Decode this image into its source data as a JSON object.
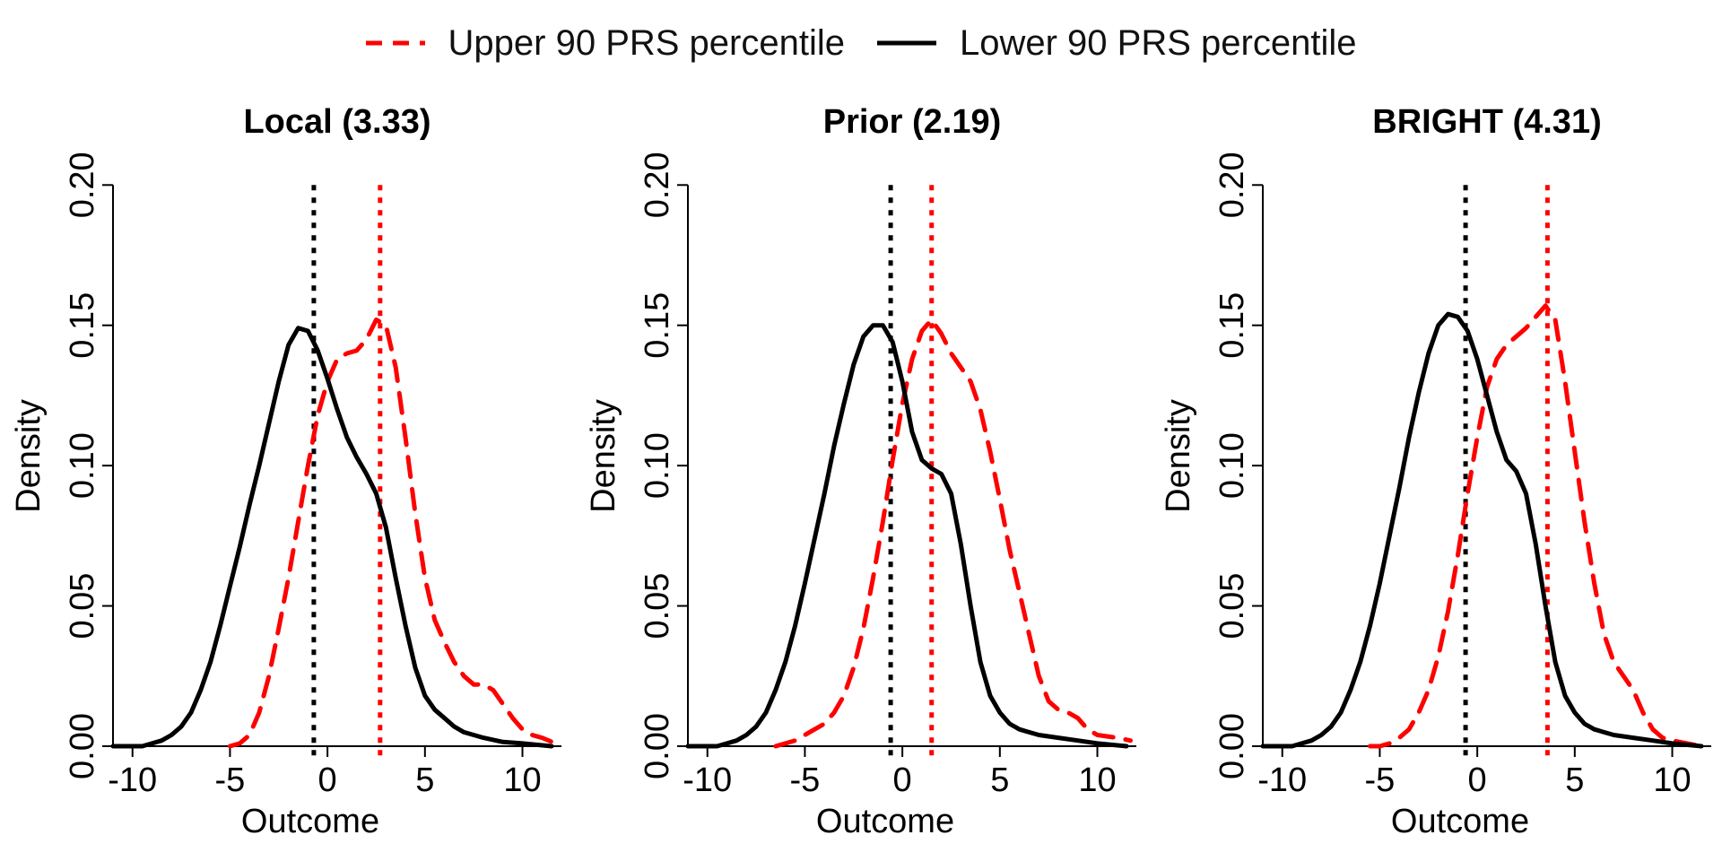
{
  "legend": {
    "position": "top-center",
    "entries": [
      {
        "label": "Upper 90 PRS percentile",
        "color": "#ff0000",
        "dash": "dashed"
      },
      {
        "label": "Lower 90 PRS percentile",
        "color": "#000000",
        "dash": "solid"
      }
    ]
  },
  "chart_data": [
    {
      "type": "line",
      "title": "Local (3.33)",
      "xlabel": "Outcome",
      "ylabel": "Density",
      "xlim": [
        -11,
        12
      ],
      "ylim": [
        0,
        0.21
      ],
      "xticks": [
        -10,
        -5,
        0,
        5,
        10
      ],
      "yticks": [
        0.0,
        0.05,
        0.1,
        0.15,
        0.2
      ],
      "grid": false,
      "vlines": [
        {
          "x": -0.7,
          "color": "#000000"
        },
        {
          "x": 2.7,
          "color": "#ff0000"
        }
      ],
      "series": [
        {
          "name": "Upper 90 PRS percentile",
          "color": "#ff0000",
          "dash": "dashed",
          "points": [
            [
              -5,
              0.0
            ],
            [
              -4.5,
              0.001
            ],
            [
              -4,
              0.004
            ],
            [
              -3.5,
              0.012
            ],
            [
              -3,
              0.025
            ],
            [
              -2.5,
              0.042
            ],
            [
              -2,
              0.06
            ],
            [
              -1.5,
              0.08
            ],
            [
              -1,
              0.1
            ],
            [
              -0.5,
              0.118
            ],
            [
              0,
              0.13
            ],
            [
              0.5,
              0.138
            ],
            [
              1,
              0.14
            ],
            [
              1.5,
              0.141
            ],
            [
              2,
              0.145
            ],
            [
              2.5,
              0.152
            ],
            [
              3,
              0.15
            ],
            [
              3.5,
              0.135
            ],
            [
              4,
              0.11
            ],
            [
              4.5,
              0.083
            ],
            [
              5,
              0.06
            ],
            [
              5.5,
              0.045
            ],
            [
              6,
              0.037
            ],
            [
              6.5,
              0.03
            ],
            [
              7,
              0.025
            ],
            [
              7.5,
              0.022
            ],
            [
              8,
              0.022
            ],
            [
              8.5,
              0.02
            ],
            [
              9,
              0.015
            ],
            [
              9.5,
              0.01
            ],
            [
              10,
              0.006
            ],
            [
              10.5,
              0.004
            ],
            [
              11,
              0.003
            ],
            [
              11.7,
              0.001
            ]
          ]
        },
        {
          "name": "Lower 90 PRS percentile",
          "color": "#000000",
          "dash": "solid",
          "points": [
            [
              -11,
              0.0
            ],
            [
              -10,
              0.0
            ],
            [
              -9.5,
              0.0
            ],
            [
              -9,
              0.001
            ],
            [
              -8.5,
              0.002
            ],
            [
              -8,
              0.004
            ],
            [
              -7.5,
              0.007
            ],
            [
              -7,
              0.012
            ],
            [
              -6.5,
              0.02
            ],
            [
              -6,
              0.03
            ],
            [
              -5.5,
              0.043
            ],
            [
              -5,
              0.057
            ],
            [
              -4.5,
              0.071
            ],
            [
              -4,
              0.086
            ],
            [
              -3.5,
              0.1
            ],
            [
              -3,
              0.115
            ],
            [
              -2.5,
              0.13
            ],
            [
              -2,
              0.143
            ],
            [
              -1.5,
              0.149
            ],
            [
              -1,
              0.148
            ],
            [
              -0.5,
              0.141
            ],
            [
              0,
              0.131
            ],
            [
              0.5,
              0.12
            ],
            [
              1,
              0.11
            ],
            [
              1.5,
              0.103
            ],
            [
              2,
              0.097
            ],
            [
              2.5,
              0.09
            ],
            [
              3,
              0.078
            ],
            [
              3.5,
              0.06
            ],
            [
              4,
              0.043
            ],
            [
              4.5,
              0.028
            ],
            [
              5,
              0.018
            ],
            [
              5.5,
              0.013
            ],
            [
              6,
              0.01
            ],
            [
              6.5,
              0.007
            ],
            [
              7,
              0.005
            ],
            [
              7.5,
              0.004
            ],
            [
              8,
              0.003
            ],
            [
              9,
              0.0015
            ],
            [
              10,
              0.001
            ],
            [
              11.5,
              0.0
            ]
          ]
        }
      ]
    },
    {
      "type": "line",
      "title": "Prior (2.19)",
      "xlabel": "Outcome",
      "ylabel": "Density",
      "xlim": [
        -11,
        12
      ],
      "ylim": [
        0,
        0.21
      ],
      "xticks": [
        -10,
        -5,
        0,
        5,
        10
      ],
      "yticks": [
        0.0,
        0.05,
        0.1,
        0.15,
        0.2
      ],
      "grid": false,
      "vlines": [
        {
          "x": -0.6,
          "color": "#000000"
        },
        {
          "x": 1.5,
          "color": "#ff0000"
        }
      ],
      "series": [
        {
          "name": "Upper 90 PRS percentile",
          "color": "#ff0000",
          "dash": "dashed",
          "points": [
            [
              -6.5,
              0.0
            ],
            [
              -6,
              0.001
            ],
            [
              -5.5,
              0.002
            ],
            [
              -5,
              0.004
            ],
            [
              -4.5,
              0.006
            ],
            [
              -4,
              0.008
            ],
            [
              -3.5,
              0.012
            ],
            [
              -3,
              0.018
            ],
            [
              -2.5,
              0.028
            ],
            [
              -2,
              0.042
            ],
            [
              -1.5,
              0.06
            ],
            [
              -1,
              0.08
            ],
            [
              -0.5,
              0.102
            ],
            [
              0,
              0.122
            ],
            [
              0.5,
              0.138
            ],
            [
              1,
              0.148
            ],
            [
              1.5,
              0.152
            ],
            [
              2,
              0.147
            ],
            [
              2.5,
              0.14
            ],
            [
              3,
              0.135
            ],
            [
              3.5,
              0.13
            ],
            [
              4,
              0.12
            ],
            [
              4.5,
              0.105
            ],
            [
              5,
              0.088
            ],
            [
              5.5,
              0.07
            ],
            [
              6,
              0.055
            ],
            [
              6.5,
              0.04
            ],
            [
              7,
              0.025
            ],
            [
              7.5,
              0.016
            ],
            [
              8,
              0.013
            ],
            [
              8.5,
              0.012
            ],
            [
              9,
              0.01
            ],
            [
              9.5,
              0.006
            ],
            [
              10,
              0.004
            ],
            [
              11,
              0.003
            ],
            [
              11.7,
              0.002
            ]
          ]
        },
        {
          "name": "Lower 90 PRS percentile",
          "color": "#000000",
          "dash": "solid",
          "points": [
            [
              -11,
              0.0
            ],
            [
              -10,
              0.0
            ],
            [
              -9.5,
              0.0
            ],
            [
              -9,
              0.001
            ],
            [
              -8.5,
              0.002
            ],
            [
              -8,
              0.004
            ],
            [
              -7.5,
              0.007
            ],
            [
              -7,
              0.012
            ],
            [
              -6.5,
              0.02
            ],
            [
              -6,
              0.03
            ],
            [
              -5.5,
              0.043
            ],
            [
              -5,
              0.058
            ],
            [
              -4.5,
              0.074
            ],
            [
              -4,
              0.09
            ],
            [
              -3.5,
              0.107
            ],
            [
              -3,
              0.122
            ],
            [
              -2.5,
              0.136
            ],
            [
              -2,
              0.146
            ],
            [
              -1.5,
              0.15
            ],
            [
              -1,
              0.15
            ],
            [
              -0.5,
              0.144
            ],
            [
              0,
              0.13
            ],
            [
              0.5,
              0.112
            ],
            [
              1,
              0.102
            ],
            [
              1.5,
              0.099
            ],
            [
              2,
              0.097
            ],
            [
              2.5,
              0.09
            ],
            [
              3,
              0.072
            ],
            [
              3.5,
              0.05
            ],
            [
              4,
              0.03
            ],
            [
              4.5,
              0.018
            ],
            [
              5,
              0.012
            ],
            [
              5.5,
              0.008
            ],
            [
              6,
              0.006
            ],
            [
              6.5,
              0.005
            ],
            [
              7,
              0.004
            ],
            [
              8,
              0.003
            ],
            [
              9,
              0.002
            ],
            [
              10,
              0.001
            ],
            [
              11.5,
              0.0
            ]
          ]
        }
      ]
    },
    {
      "type": "line",
      "title": "BRIGHT (4.31)",
      "xlabel": "Outcome",
      "ylabel": "Density",
      "xlim": [
        -11,
        12
      ],
      "ylim": [
        0,
        0.21
      ],
      "xticks": [
        -10,
        -5,
        0,
        5,
        10
      ],
      "yticks": [
        0.0,
        0.05,
        0.1,
        0.15,
        0.2
      ],
      "grid": false,
      "vlines": [
        {
          "x": -0.6,
          "color": "#000000"
        },
        {
          "x": 3.6,
          "color": "#ff0000"
        }
      ],
      "series": [
        {
          "name": "Upper 90 PRS percentile",
          "color": "#ff0000",
          "dash": "dashed",
          "points": [
            [
              -5.5,
              0.0
            ],
            [
              -5,
              0.0
            ],
            [
              -4.5,
              0.001
            ],
            [
              -4,
              0.003
            ],
            [
              -3.5,
              0.006
            ],
            [
              -3,
              0.012
            ],
            [
              -2.5,
              0.02
            ],
            [
              -2,
              0.032
            ],
            [
              -1.5,
              0.048
            ],
            [
              -1,
              0.068
            ],
            [
              -0.5,
              0.09
            ],
            [
              0,
              0.11
            ],
            [
              0.5,
              0.128
            ],
            [
              1,
              0.138
            ],
            [
              1.5,
              0.143
            ],
            [
              2,
              0.146
            ],
            [
              2.5,
              0.149
            ],
            [
              3,
              0.153
            ],
            [
              3.5,
              0.157
            ],
            [
              4,
              0.152
            ],
            [
              4.5,
              0.13
            ],
            [
              5,
              0.105
            ],
            [
              5.5,
              0.08
            ],
            [
              6,
              0.058
            ],
            [
              6.5,
              0.04
            ],
            [
              7,
              0.03
            ],
            [
              7.5,
              0.025
            ],
            [
              8,
              0.02
            ],
            [
              8.5,
              0.012
            ],
            [
              9,
              0.006
            ],
            [
              9.5,
              0.003
            ],
            [
              10,
              0.002
            ],
            [
              11.5,
              0.0
            ]
          ]
        },
        {
          "name": "Lower 90 PRS percentile",
          "color": "#000000",
          "dash": "solid",
          "points": [
            [
              -11,
              0.0
            ],
            [
              -10,
              0.0
            ],
            [
              -9.5,
              0.0
            ],
            [
              -9,
              0.001
            ],
            [
              -8.5,
              0.002
            ],
            [
              -8,
              0.004
            ],
            [
              -7.5,
              0.007
            ],
            [
              -7,
              0.012
            ],
            [
              -6.5,
              0.02
            ],
            [
              -6,
              0.03
            ],
            [
              -5.5,
              0.043
            ],
            [
              -5,
              0.058
            ],
            [
              -4.5,
              0.075
            ],
            [
              -4,
              0.092
            ],
            [
              -3.5,
              0.11
            ],
            [
              -3,
              0.126
            ],
            [
              -2.5,
              0.14
            ],
            [
              -2,
              0.15
            ],
            [
              -1.5,
              0.154
            ],
            [
              -1,
              0.153
            ],
            [
              -0.5,
              0.148
            ],
            [
              0,
              0.138
            ],
            [
              0.5,
              0.125
            ],
            [
              1,
              0.112
            ],
            [
              1.5,
              0.102
            ],
            [
              2,
              0.098
            ],
            [
              2.5,
              0.09
            ],
            [
              3,
              0.072
            ],
            [
              3.5,
              0.05
            ],
            [
              4,
              0.03
            ],
            [
              4.5,
              0.018
            ],
            [
              5,
              0.012
            ],
            [
              5.5,
              0.008
            ],
            [
              6,
              0.006
            ],
            [
              6.5,
              0.005
            ],
            [
              7,
              0.004
            ],
            [
              8,
              0.003
            ],
            [
              9,
              0.002
            ],
            [
              10,
              0.001
            ],
            [
              11.5,
              0.0
            ]
          ]
        }
      ]
    }
  ]
}
